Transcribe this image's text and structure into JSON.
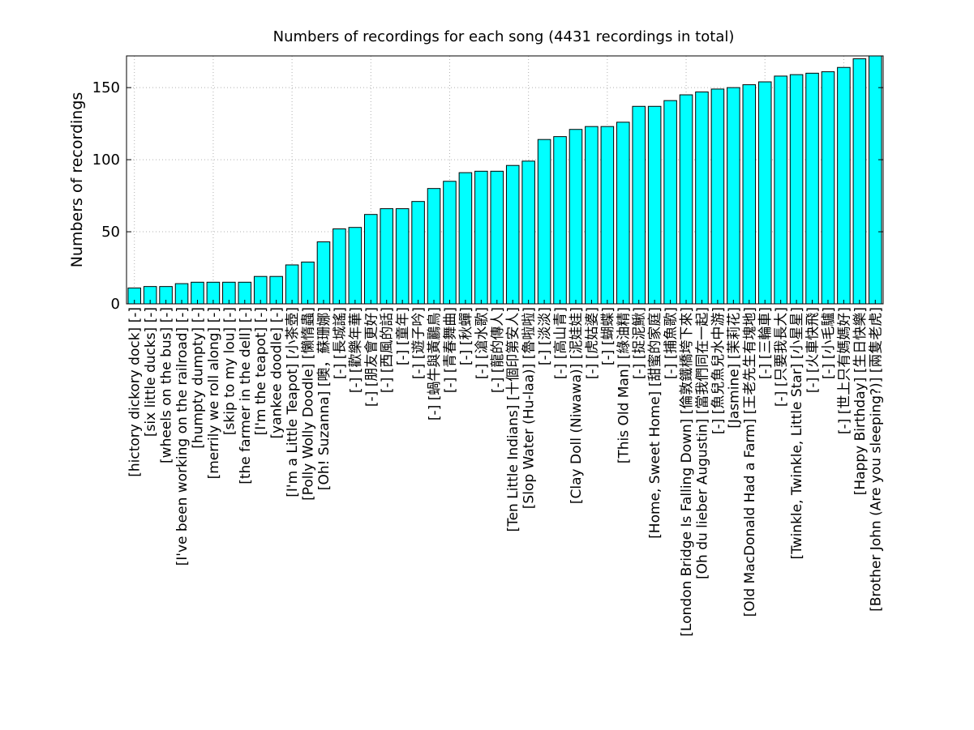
{
  "chart_data": {
    "type": "bar",
    "title": "Numbers of recordings for each song (4431 recordings in total)",
    "xlabel": "",
    "ylabel": "Numbers of recordings",
    "ylim": [
      0,
      172
    ],
    "yticks": [
      0,
      50,
      100,
      150
    ],
    "grid": true,
    "bar_color": "#00ffff",
    "edge_color": "#000000",
    "categories": [
      "[hictory dickory dock] [-]",
      "[six little ducks] [-]",
      "[wheels on the bus] [-]",
      "[I've been working on the railroad] [-]",
      "[humpty dumpty] [-]",
      "[merrily we roll along] [-]",
      "[skip to my lou] [-]",
      "[the farmer in the dell] [-]",
      "[I'm the teapot] [-]",
      "[yankee doodle] [-]",
      "[I'm a Little Teapot] [小茶壺]",
      "[Polly Wolly Doodle] [懶惰蟲]",
      "[Oh! Suzanna] [噢，蘇珊娜]",
      "[-] [長城謠]",
      "[-] [歡樂年華]",
      "[-] [朋友會更好]",
      "[-] [西風的話]",
      "[-] [童年]",
      "[-] [遊子吟]",
      "[-] [蝸牛與黃鸝鳥]",
      "[-] [青春舞曲]",
      "[-] [秋蟬]",
      "[-] [滄水歌]",
      "[-] [龍的傳人]",
      "[Ten Little Indians] [十個印第安人]",
      "[Slop Water (Hu-laa)] [魯啦啦]",
      "[-] [淡淡]",
      "[-] [高山青]",
      "[Clay Doll (Niwawa)] [泥娃娃]",
      "[-] [虎姑婆]",
      "[-] [蝴蝶]",
      "[This Old Man] [綠油精]",
      "[-] [捉泥鰍]",
      "[Home, Sweet Home] [甜蜜的家庭]",
      "[-] [捕魚歌]",
      "[London Bridge Is Falling Down] [倫敦鐵橋垮下來]",
      "[Oh du lieber Augustin] [當我們同在一起]",
      "[-] [魚兒魚兒水中游]",
      "[Jasmine] [茉莉花]",
      "[Old MacDonald Had a Farm] [王老先生有塊地]",
      "[-] [三輪車]",
      "[-] [只要我長大]",
      "[Twinkle, Twinkle, Little Star] [小星星]",
      "[-] [火車快飛]",
      "[-] [小毛驢]",
      "[-] [世上只有媽媽好]",
      "[Happy Birthday] [生日快樂]",
      "[Brother John (Are you sleeping?)] [兩隻老虎]"
    ],
    "values": [
      11,
      12,
      12,
      14,
      15,
      15,
      15,
      15,
      19,
      19,
      27,
      29,
      43,
      52,
      53,
      62,
      66,
      66,
      71,
      80,
      85,
      91,
      92,
      92,
      96,
      99,
      114,
      116,
      121,
      123,
      123,
      126,
      137,
      137,
      141,
      145,
      147,
      149,
      150,
      152,
      154,
      158,
      159,
      160,
      161,
      164,
      170,
      172
    ]
  }
}
